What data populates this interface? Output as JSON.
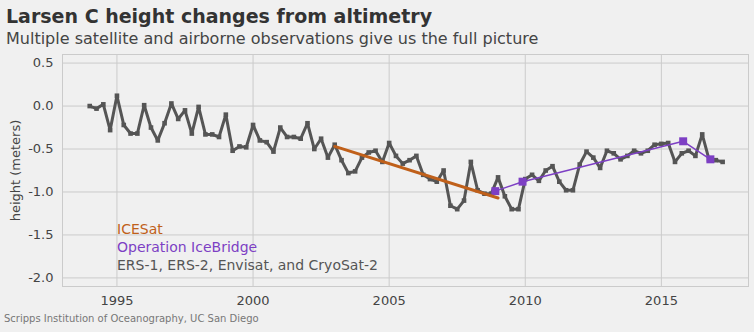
{
  "chart_data": {
    "type": "line",
    "title": "Larsen C height changes from altimetry",
    "subtitle": "Multiple satellite and airborne observations give us the full picture",
    "y_label": "height (meters)",
    "caption": "Scripps Institution of Oceanography, UC San Diego",
    "xlim": [
      1993,
      2018.2
    ],
    "xticks": [
      1995,
      2000,
      2005,
      2010,
      2015
    ],
    "ylim": [
      -2.1,
      0.6
    ],
    "yticks": [
      {
        "value": 0.5,
        "label": "0.5"
      },
      {
        "value": 0,
        "label": "0.0"
      },
      {
        "value": -0.5,
        "label": "-0.5"
      },
      {
        "value": -1,
        "label": "-1.0"
      },
      {
        "value": -1.5,
        "label": "-1.5"
      },
      {
        "value": -2,
        "label": "-2.0"
      }
    ],
    "grid": true,
    "legend": "bottom-left",
    "series": [
      {
        "name": "ICESat",
        "color": "#c0601a",
        "marker": "none",
        "line_style": "solid",
        "x": [
          2003,
          2009
        ],
        "values": [
          -0.47,
          -1.07
        ]
      },
      {
        "name": "Operation IceBridge",
        "color": "#7d3fc4",
        "marker": "square",
        "line_style": "solid",
        "x": [
          2008.9,
          2009.9,
          2015.8,
          2016.8
        ],
        "values": [
          -0.99,
          -0.88,
          -0.41,
          -0.62
        ]
      },
      {
        "name": "ERS-1, ERS-2, Envisat, and CryoSat-2",
        "color": "#555555",
        "marker": "square",
        "line_style": "solid",
        "x": [
          1994,
          1994.25,
          1994.5,
          1994.75,
          1995,
          1995.25,
          1995.5,
          1995.75,
          1996,
          1996.25,
          1996.5,
          1996.75,
          1997,
          1997.25,
          1997.5,
          1997.75,
          1998,
          1998.25,
          1998.5,
          1998.75,
          1999,
          1999.25,
          1999.5,
          1999.75,
          2000,
          2000.25,
          2000.5,
          2000.75,
          2001,
          2001.25,
          2001.5,
          2001.75,
          2002,
          2002.25,
          2002.5,
          2002.75,
          2003,
          2003.25,
          2003.5,
          2003.75,
          2004,
          2004.25,
          2004.5,
          2004.75,
          2005,
          2005.25,
          2005.5,
          2005.75,
          2006,
          2006.25,
          2006.5,
          2006.75,
          2007,
          2007.25,
          2007.5,
          2007.75,
          2008,
          2008.25,
          2008.5,
          2008.75,
          2009,
          2009.25,
          2009.5,
          2009.75,
          2010,
          2010.25,
          2010.5,
          2010.75,
          2011,
          2011.25,
          2011.5,
          2011.75,
          2012,
          2012.25,
          2012.5,
          2012.75,
          2013,
          2013.25,
          2013.5,
          2013.75,
          2014,
          2014.25,
          2014.5,
          2014.75,
          2015,
          2015.25,
          2015.5,
          2015.75,
          2016,
          2016.25,
          2016.5,
          2016.75,
          2017,
          2017.25
        ],
        "values": [
          0.0,
          -0.03,
          0.02,
          -0.28,
          0.12,
          -0.22,
          -0.32,
          -0.32,
          0.01,
          -0.25,
          -0.4,
          -0.2,
          0.03,
          -0.15,
          -0.05,
          -0.32,
          -0.01,
          -0.33,
          -0.33,
          -0.36,
          -0.1,
          -0.52,
          -0.47,
          -0.48,
          -0.22,
          -0.4,
          -0.42,
          -0.53,
          -0.25,
          -0.36,
          -0.36,
          -0.38,
          -0.2,
          -0.5,
          -0.38,
          -0.6,
          -0.45,
          -0.63,
          -0.78,
          -0.76,
          -0.6,
          -0.54,
          -0.52,
          -0.65,
          -0.43,
          -0.58,
          -0.67,
          -0.63,
          -0.58,
          -0.8,
          -0.85,
          -0.88,
          -0.75,
          -1.16,
          -1.2,
          -1.1,
          -0.65,
          -0.98,
          -1.02,
          -1.02,
          -0.83,
          -1.05,
          -1.2,
          -1.2,
          -0.85,
          -0.8,
          -0.87,
          -0.75,
          -0.7,
          -0.88,
          -0.98,
          -0.98,
          -0.68,
          -0.53,
          -0.6,
          -0.72,
          -0.52,
          -0.55,
          -0.62,
          -0.58,
          -0.52,
          -0.55,
          -0.52,
          -0.45,
          -0.44,
          -0.43,
          -0.65,
          -0.55,
          -0.52,
          -0.58,
          -0.33,
          -0.62,
          -0.63,
          -0.65
        ]
      }
    ]
  }
}
